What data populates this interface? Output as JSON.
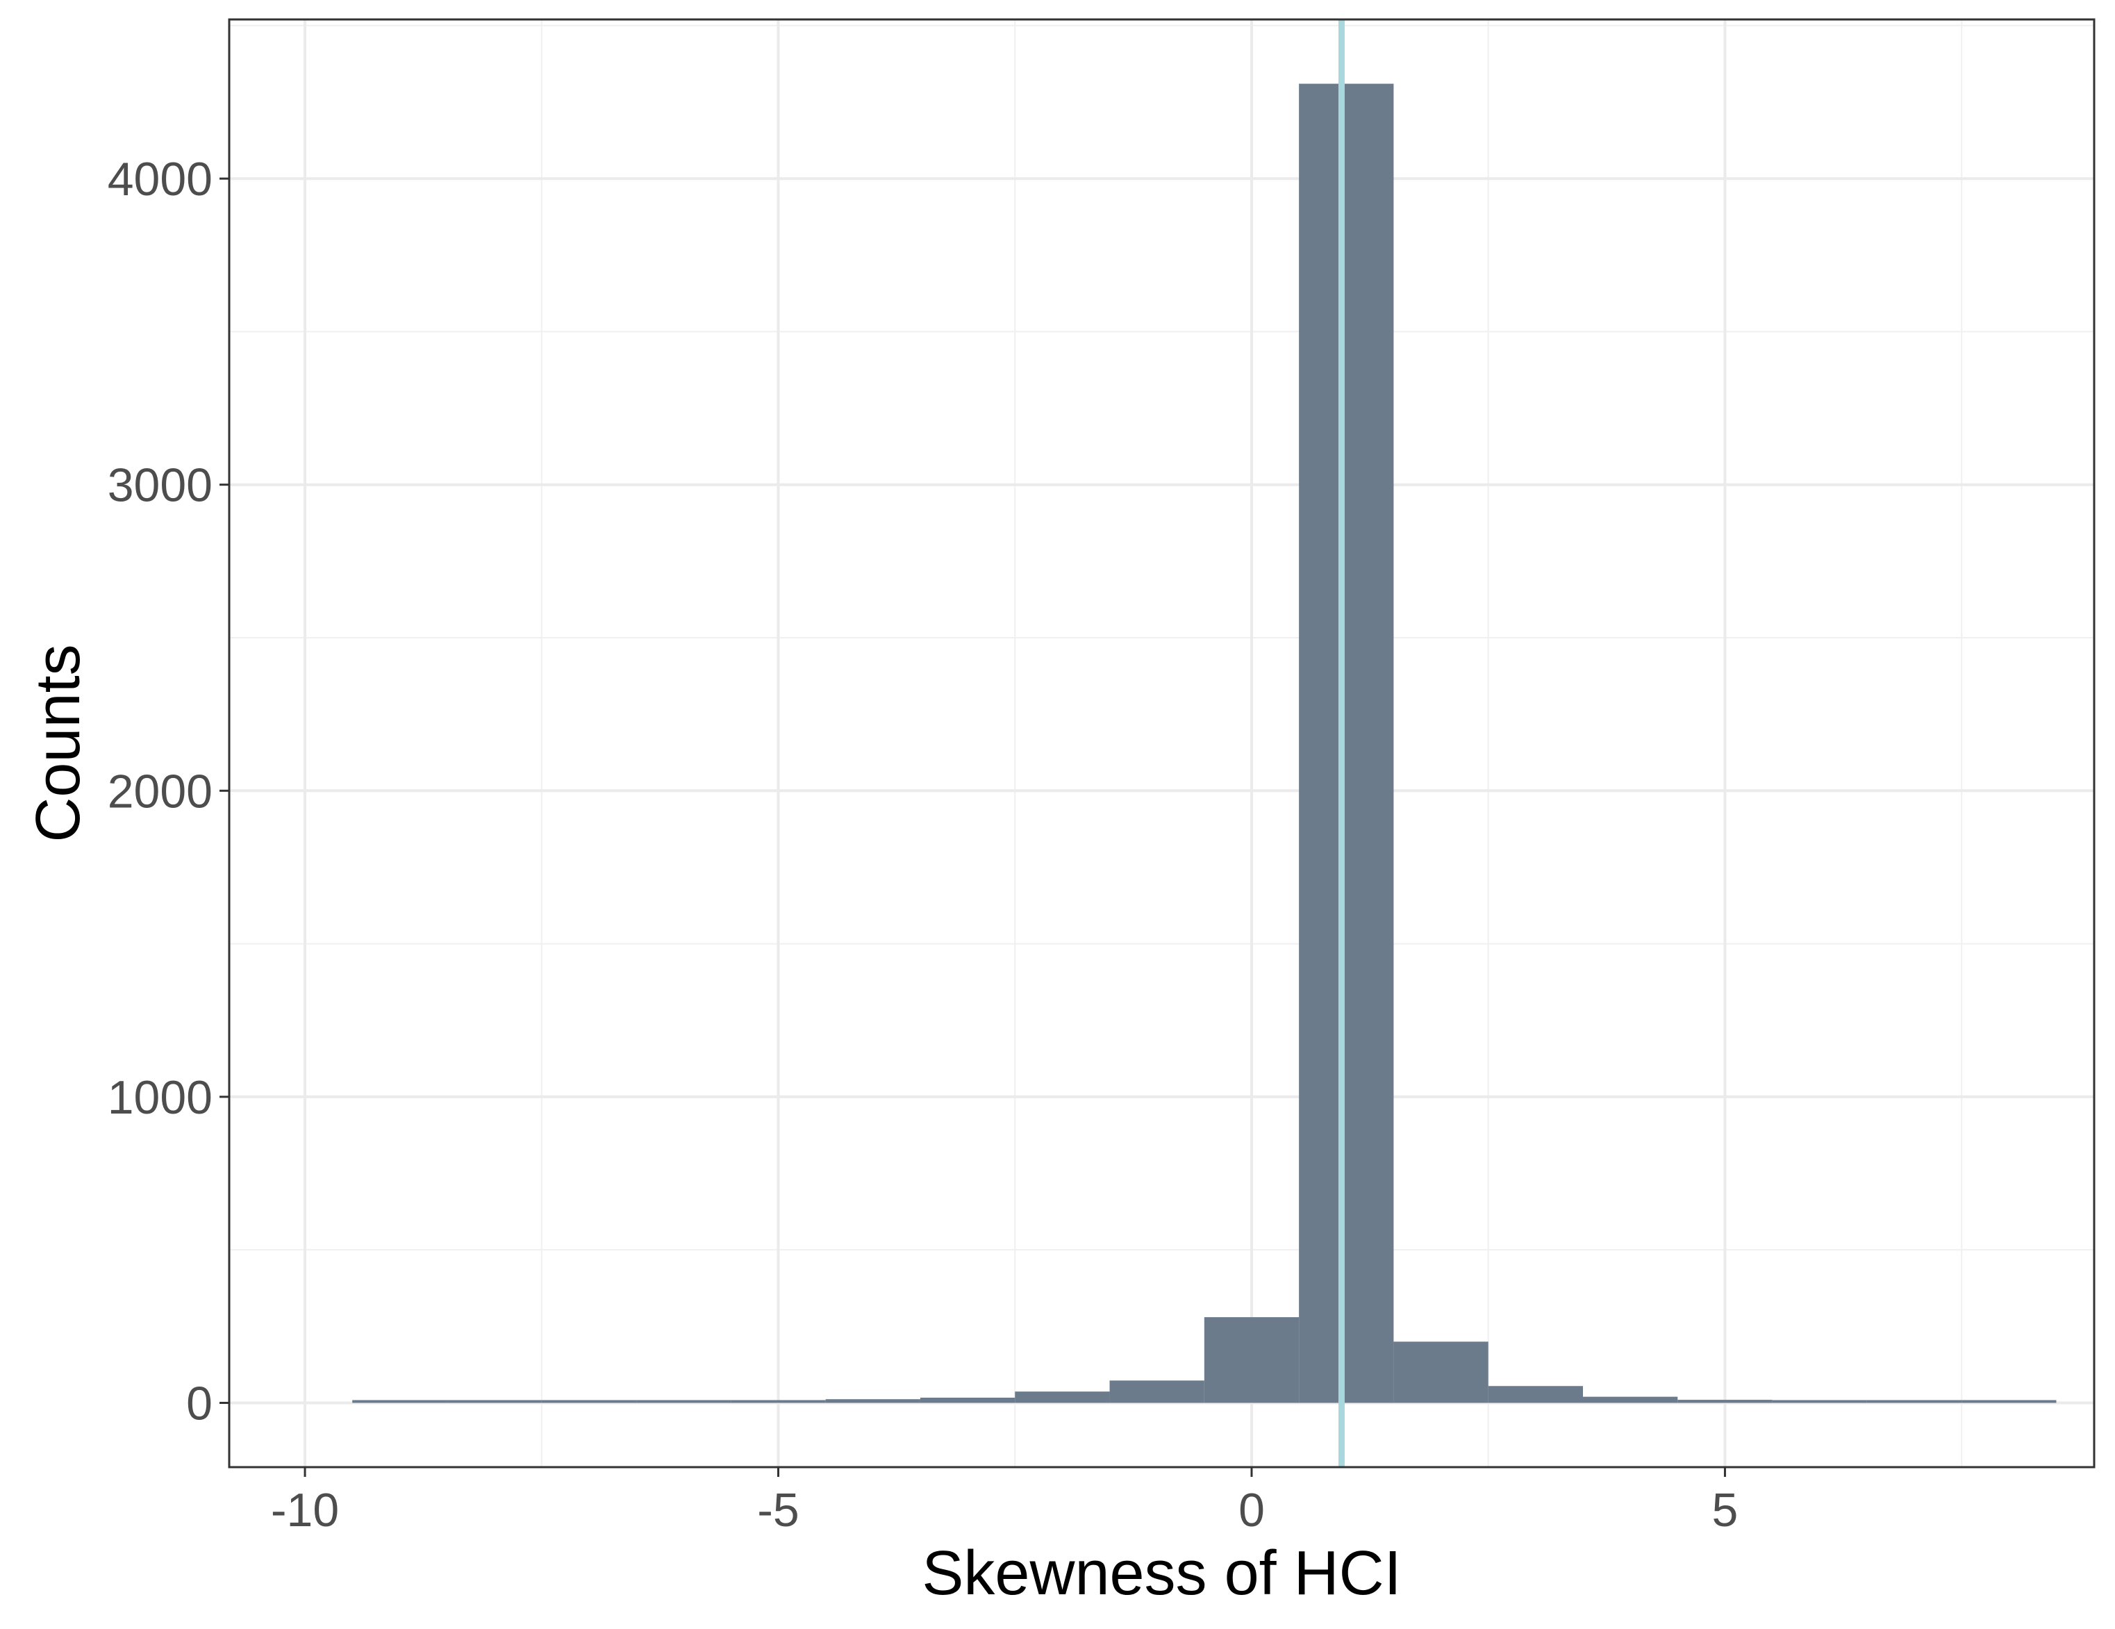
{
  "chart_data": {
    "type": "bar",
    "subtype": "histogram",
    "title": "",
    "xlabel": "Skewness of HCI",
    "ylabel": "Counts",
    "xlim": [
      -10.8,
      8.9
    ],
    "ylim": [
      -210,
      4520
    ],
    "x_ticks": [
      -10,
      -5,
      0,
      5
    ],
    "x_tick_labels": [
      "-10",
      "-5",
      "0",
      "5"
    ],
    "y_ticks": [
      0,
      1000,
      2000,
      3000,
      4000
    ],
    "y_tick_labels": [
      "0",
      "1000",
      "2000",
      "3000",
      "4000"
    ],
    "bin_width": 1,
    "bins": [
      {
        "x0": -9.5,
        "x1": -8.5,
        "count": 2
      },
      {
        "x0": -8.5,
        "x1": -7.5,
        "count": 2
      },
      {
        "x0": -7.5,
        "x1": -6.5,
        "count": 3
      },
      {
        "x0": -6.5,
        "x1": -5.5,
        "count": 4
      },
      {
        "x0": -5.5,
        "x1": -4.5,
        "count": 7
      },
      {
        "x0": -4.5,
        "x1": -3.5,
        "count": 12
      },
      {
        "x0": -3.5,
        "x1": -2.5,
        "count": 17
      },
      {
        "x0": -2.5,
        "x1": -1.5,
        "count": 37
      },
      {
        "x0": -1.5,
        "x1": -0.5,
        "count": 73
      },
      {
        "x0": -0.5,
        "x1": 0.5,
        "count": 280
      },
      {
        "x0": 0.5,
        "x1": 1.5,
        "count": 4310
      },
      {
        "x0": 1.5,
        "x1": 2.5,
        "count": 200
      },
      {
        "x0": 2.5,
        "x1": 3.5,
        "count": 55
      },
      {
        "x0": 3.5,
        "x1": 4.5,
        "count": 20
      },
      {
        "x0": 4.5,
        "x1": 5.5,
        "count": 10
      },
      {
        "x0": 5.5,
        "x1": 6.5,
        "count": 6
      },
      {
        "x0": 6.5,
        "x1": 7.5,
        "count": 3
      },
      {
        "x0": 7.5,
        "x1": 8.5,
        "count": 2
      }
    ],
    "vline": {
      "x": 0.95,
      "color": "#a8d8de"
    },
    "bar_color": "#6c7b8b",
    "grid": true,
    "legend": "none"
  }
}
